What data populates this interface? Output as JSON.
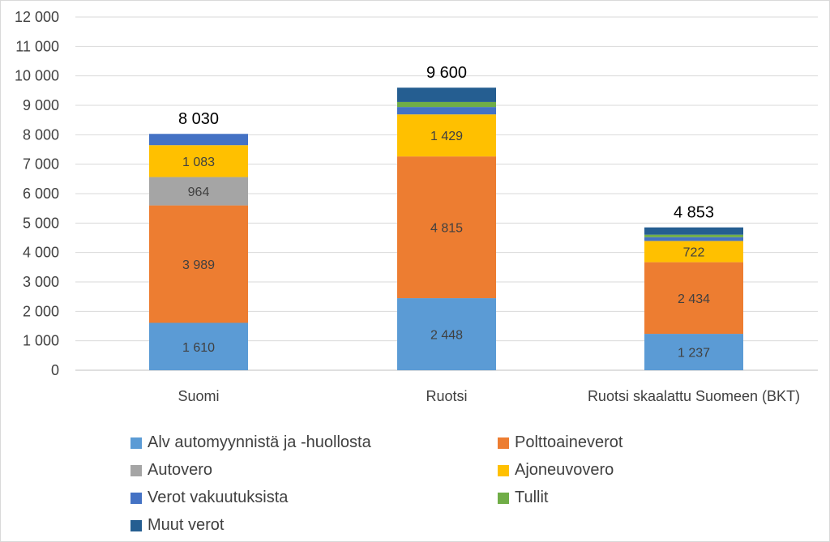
{
  "chart_data": {
    "type": "bar",
    "stacked": true,
    "categories": [
      "Suomi",
      "Ruotsi",
      "Ruotsi skaalattu Suomeen (BKT)"
    ],
    "ylim": [
      0,
      12000
    ],
    "yticks": [
      0,
      1000,
      2000,
      3000,
      4000,
      5000,
      6000,
      7000,
      8000,
      9000,
      10000,
      11000,
      12000
    ],
    "ytick_labels": [
      "0",
      "1 000",
      "2 000",
      "3 000",
      "4 000",
      "5 000",
      "6 000",
      "7 000",
      "8 000",
      "9 000",
      "10 000",
      "11 000",
      "12 000"
    ],
    "grid": true,
    "legend_position": "bottom",
    "series": [
      {
        "name": "Alv automyynnistä ja -huollosta",
        "color": "#5B9BD5",
        "values": [
          1610,
          2448,
          1237
        ],
        "labels": [
          "1 610",
          "2 448",
          "1 237"
        ]
      },
      {
        "name": "Polttoaineverot",
        "color": "#ED7D31",
        "values": [
          3989,
          4815,
          2434
        ],
        "labels": [
          "3 989",
          "4 815",
          "2 434"
        ]
      },
      {
        "name": "Autovero",
        "color": "#A5A5A5",
        "values": [
          964,
          0,
          0
        ],
        "labels": [
          "964",
          "",
          ""
        ]
      },
      {
        "name": "Ajoneuvovero",
        "color": "#FFC000",
        "values": [
          1083,
          1429,
          722
        ],
        "labels": [
          "1 083",
          "1 429",
          "722"
        ]
      },
      {
        "name": "Verot vakuutuksista",
        "color": "#4472C4",
        "values": [
          384,
          250,
          126
        ],
        "labels": [
          "",
          "",
          ""
        ]
      },
      {
        "name": "Tullit",
        "color": "#70AD47",
        "values": [
          0,
          170,
          86
        ],
        "labels": [
          "",
          "",
          ""
        ]
      },
      {
        "name": "Muut verot",
        "color": "#255E91",
        "values": [
          0,
          488,
          248
        ],
        "labels": [
          "",
          "",
          ""
        ]
      }
    ],
    "totals": [
      8030,
      9600,
      4853
    ],
    "total_labels": [
      "8 030",
      "9 600",
      "4 853"
    ]
  }
}
